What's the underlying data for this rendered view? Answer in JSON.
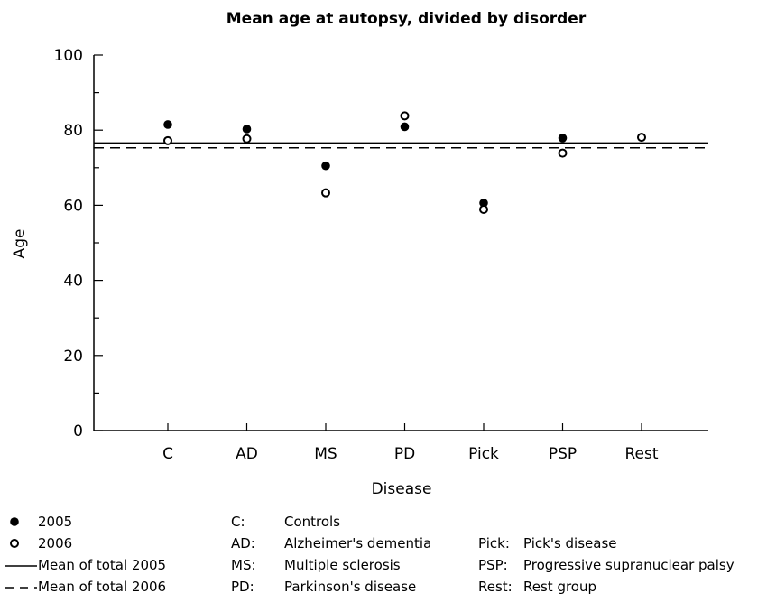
{
  "chart_data": {
    "type": "scatter",
    "title": "Mean age at autopsy, divided by disorder",
    "xlabel": "Disease",
    "ylabel": "Age",
    "ylim": [
      0,
      100
    ],
    "yticks": [
      0,
      20,
      40,
      60,
      80,
      100
    ],
    "categories": [
      "C",
      "AD",
      "MS",
      "PD",
      "Pick",
      "PSP",
      "Rest"
    ],
    "series": [
      {
        "name": "2005",
        "marker": "filled-circle",
        "values": [
          81.5,
          80.3,
          70.5,
          80.9,
          60.6,
          77.9,
          78.1
        ]
      },
      {
        "name": "2006",
        "marker": "open-circle",
        "values": [
          77.2,
          77.7,
          63.3,
          83.8,
          58.9,
          73.9,
          78.1
        ]
      }
    ],
    "reference_lines": [
      {
        "name": "Mean of total 2005",
        "style": "solid",
        "y": 76.6
      },
      {
        "name": "Mean of total 2006",
        "style": "dashed",
        "y": 75.3
      }
    ],
    "grid": false,
    "legend_position": "bottom-left"
  },
  "legend": {
    "items": [
      {
        "symbol": "filled-circle",
        "label": "2005"
      },
      {
        "symbol": "open-circle",
        "label": "2006"
      },
      {
        "symbol": "solid-line",
        "label": "Mean of total 2005"
      },
      {
        "symbol": "dashed-line",
        "label": "Mean of total 2006"
      }
    ]
  },
  "abbreviations": {
    "column1": [
      {
        "key": "C:",
        "value": "Controls"
      },
      {
        "key": "AD:",
        "value": "Alzheimer's dementia"
      },
      {
        "key": "MS:",
        "value": "Multiple sclerosis"
      },
      {
        "key": "PD:",
        "value": "Parkinson's disease"
      }
    ],
    "column2": [
      {
        "key": "Pick:",
        "value": "Pick's disease"
      },
      {
        "key": "PSP:",
        "value": "Progressive supranuclear palsy"
      },
      {
        "key": "Rest:",
        "value": "Rest group"
      }
    ]
  }
}
